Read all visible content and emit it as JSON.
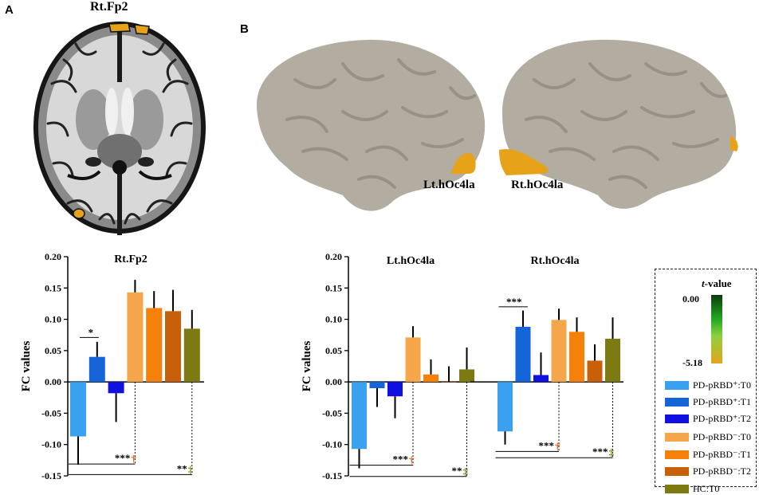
{
  "panels": {
    "a": "A",
    "b": "B"
  },
  "brain_labels": {
    "axial": "Rt.Fp2",
    "left": "Lt.hOc4la",
    "right": "Rt.hOc4la"
  },
  "colors": {
    "pos_t0": "#3aa0f0",
    "pos_t1": "#1565d8",
    "pos_t2": "#1010e0",
    "neg_t0": "#f5a54a",
    "neg_t1": "#f5800a",
    "neg_t2": "#c8600a",
    "hc_t0": "#7d7a12",
    "dagger": "#e2631a",
    "ddagger": "#7d8a18",
    "cortex": "#b2aca1",
    "activation": "#e6a31a"
  },
  "legend": {
    "title_italic": "t",
    "title_rest": "-value",
    "colorbar_max": "0.00",
    "colorbar_min": "-5.18",
    "items": [
      {
        "key": "pos_t0",
        "label": "PD-pRBD⁺:T0"
      },
      {
        "key": "pos_t1",
        "label": "PD-pRBD⁺:T1"
      },
      {
        "key": "pos_t2",
        "label": "PD-pRBD⁺:T2"
      },
      {
        "key": "neg_t0",
        "label": "PD-pRBD⁻:T0"
      },
      {
        "key": "neg_t1",
        "label": "PD-pRBD⁻:T1"
      },
      {
        "key": "neg_t2",
        "label": "PD-pRBD⁻:T2"
      },
      {
        "key": "hc_t0",
        "label": "HC:T0"
      }
    ]
  },
  "chart_data": [
    {
      "type": "bar",
      "title": "Rt.Fp2",
      "ylabel": "FC values",
      "xlabel": "",
      "ylim": [
        -0.15,
        0.2
      ],
      "yticks": [
        "0.20",
        "0.15",
        "0.10",
        "0.05",
        "0.00",
        "-0.05",
        "-0.10",
        "-0.15"
      ],
      "categories": [
        "PD-pRBD⁺:T0",
        "PD-pRBD⁺:T1",
        "PD-pRBD⁺:T2",
        "PD-pRBD⁻:T0",
        "PD-pRBD⁻:T1",
        "PD-pRBD⁻:T2",
        "HC:T0"
      ],
      "values": [
        -0.087,
        0.04,
        -0.018,
        0.143,
        0.118,
        0.113,
        0.085
      ],
      "errors": [
        0.045,
        0.024,
        0.046,
        0.02,
        0.027,
        0.034,
        0.03
      ],
      "annotations": [
        {
          "text": "*",
          "between": [
            1,
            2
          ]
        },
        {
          "text": "***",
          "mark": "†",
          "from": 1,
          "to": 4
        },
        {
          "text": "**",
          "mark": "‡",
          "from": 1,
          "to": 7
        }
      ]
    },
    {
      "type": "bar",
      "title": "Lt.hOc4la",
      "ylabel": "FC values",
      "xlabel": "",
      "ylim": [
        -0.15,
        0.2
      ],
      "yticks": [
        "0.20",
        "0.15",
        "0.10",
        "0.05",
        "0.00",
        "-0.05",
        "-0.10",
        "-0.15"
      ],
      "categories": [
        "PD-pRBD⁺:T0",
        "PD-pRBD⁺:T1",
        "PD-pRBD⁺:T2",
        "PD-pRBD⁻:T0",
        "PD-pRBD⁻:T1",
        "PD-pRBD⁻:T2",
        "HC:T0"
      ],
      "values": [
        -0.107,
        -0.01,
        -0.023,
        0.071,
        0.012,
        0.0,
        0.02
      ],
      "errors": [
        0.031,
        0.03,
        0.035,
        0.018,
        0.024,
        0.025,
        0.035
      ],
      "annotations": [
        {
          "text": "***",
          "mark": "†",
          "from": 1,
          "to": 4
        },
        {
          "text": "**",
          "mark": "‡",
          "from": 1,
          "to": 7
        }
      ]
    },
    {
      "type": "bar",
      "title": "Rt.hOc4la",
      "ylabel": "FC values",
      "xlabel": "",
      "ylim": [
        -0.15,
        0.2
      ],
      "categories": [
        "PD-pRBD⁺:T0",
        "PD-pRBD⁺:T1",
        "PD-pRBD⁺:T2",
        "PD-pRBD⁻:T0",
        "PD-pRBD⁻:T1",
        "PD-pRBD⁻:T2",
        "HC:T0"
      ],
      "values": [
        -0.079,
        0.088,
        0.011,
        0.099,
        0.08,
        0.034,
        0.069
      ],
      "errors": [
        0.021,
        0.026,
        0.036,
        0.018,
        0.023,
        0.026,
        0.034
      ],
      "annotations": [
        {
          "text": "***",
          "between": [
            1,
            2
          ]
        },
        {
          "text": "***",
          "mark": "†",
          "from": 1,
          "to": 4
        },
        {
          "text": "***",
          "mark": "‡",
          "from": 1,
          "to": 7
        }
      ]
    }
  ]
}
